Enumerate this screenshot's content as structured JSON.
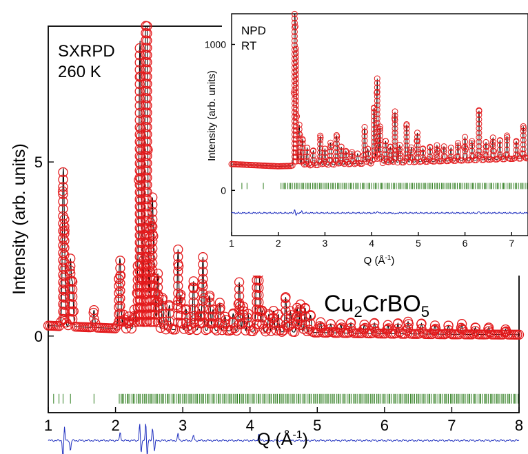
{
  "chart_data": [
    {
      "id": "main",
      "type": "scatter",
      "xlabel_text": "Q (Å",
      "xlabel_sup": "-1",
      "xlabel_close": ")",
      "ylabel": "Intensity (arb. units)",
      "xlim": [
        1,
        8
      ],
      "ylim": [
        -2.2,
        8.9
      ],
      "x_ticks": [
        1,
        2,
        3,
        4,
        5,
        6,
        7,
        8
      ],
      "x_tick_labels": [
        "1",
        "2",
        "3",
        "4",
        "5",
        "6",
        "7",
        "8"
      ],
      "y_ticks": [
        0,
        5
      ],
      "y_tick_labels": [
        "0",
        "5"
      ],
      "annotations": {
        "line1": "SXRPD",
        "line2": "260 K"
      },
      "compound": {
        "part1": "Cu",
        "sub1": "2",
        "part2": "CrBO",
        "sub2": "5"
      },
      "background": {
        "x": [
          1.0,
          2.0,
          3.0,
          4.0,
          5.0,
          6.0,
          7.0,
          8.0
        ],
        "y": [
          0.3,
          0.22,
          0.18,
          0.14,
          0.1,
          0.07,
          0.05,
          0.04
        ]
      },
      "peaks": [
        {
          "q": 1.22,
          "h": 3.9
        },
        {
          "q": 1.24,
          "h": 2.1
        },
        {
          "q": 1.33,
          "h": 1.9
        },
        {
          "q": 1.36,
          "h": 1.2
        },
        {
          "q": 1.68,
          "h": 0.5
        },
        {
          "q": 2.05,
          "h": 1.0
        },
        {
          "q": 2.07,
          "h": 1.7
        },
        {
          "q": 2.12,
          "h": 0.4
        },
        {
          "q": 2.2,
          "h": 0.35
        },
        {
          "q": 2.28,
          "h": 0.55
        },
        {
          "q": 2.33,
          "h": 1.5
        },
        {
          "q": 2.36,
          "h": 7.0
        },
        {
          "q": 2.38,
          "h": 4.0
        },
        {
          "q": 2.42,
          "h": 1.6
        },
        {
          "q": 2.45,
          "h": 8.5
        },
        {
          "q": 2.47,
          "h": 7.2
        },
        {
          "q": 2.52,
          "h": 2.9
        },
        {
          "q": 2.55,
          "h": 3.6
        },
        {
          "q": 2.58,
          "h": 1.3
        },
        {
          "q": 2.63,
          "h": 1.6
        },
        {
          "q": 2.7,
          "h": 0.9
        },
        {
          "q": 2.8,
          "h": 0.7
        },
        {
          "q": 2.93,
          "h": 2.3
        },
        {
          "q": 2.97,
          "h": 1.0
        },
        {
          "q": 3.05,
          "h": 0.6
        },
        {
          "q": 3.16,
          "h": 1.4
        },
        {
          "q": 3.25,
          "h": 0.6
        },
        {
          "q": 3.3,
          "h": 2.1
        },
        {
          "q": 3.4,
          "h": 1.0
        },
        {
          "q": 3.45,
          "h": 0.6
        },
        {
          "q": 3.55,
          "h": 0.8
        },
        {
          "q": 3.63,
          "h": 0.4
        },
        {
          "q": 3.75,
          "h": 0.5
        },
        {
          "q": 3.84,
          "h": 1.4
        },
        {
          "q": 3.9,
          "h": 0.7
        },
        {
          "q": 3.97,
          "h": 0.5
        },
        {
          "q": 4.1,
          "h": 2.0
        },
        {
          "q": 4.13,
          "h": 2.2
        },
        {
          "q": 4.18,
          "h": 0.6
        },
        {
          "q": 4.28,
          "h": 0.5
        },
        {
          "q": 4.35,
          "h": 0.6
        },
        {
          "q": 4.42,
          "h": 0.5
        },
        {
          "q": 4.53,
          "h": 1.0
        },
        {
          "q": 4.6,
          "h": 0.6
        },
        {
          "q": 4.7,
          "h": 0.7
        },
        {
          "q": 4.75,
          "h": 0.8
        },
        {
          "q": 4.82,
          "h": 0.7
        },
        {
          "q": 4.9,
          "h": 0.5
        },
        {
          "q": 5.05,
          "h": 0.3
        },
        {
          "q": 5.2,
          "h": 0.25
        },
        {
          "q": 5.35,
          "h": 0.25
        },
        {
          "q": 5.5,
          "h": 0.3
        },
        {
          "q": 5.7,
          "h": 0.25
        },
        {
          "q": 5.85,
          "h": 0.3
        },
        {
          "q": 6.05,
          "h": 0.25
        },
        {
          "q": 6.2,
          "h": 0.3
        },
        {
          "q": 6.35,
          "h": 0.35
        },
        {
          "q": 6.55,
          "h": 0.3
        },
        {
          "q": 6.75,
          "h": 0.25
        },
        {
          "q": 6.95,
          "h": 0.25
        },
        {
          "q": 7.15,
          "h": 0.3
        },
        {
          "q": 7.35,
          "h": 0.2
        },
        {
          "q": 7.55,
          "h": 0.2
        },
        {
          "q": 7.8,
          "h": 0.15
        }
      ],
      "bragg_ticks_y": -1.8,
      "bragg_positions": [
        1.08,
        1.16,
        1.22,
        1.33,
        1.68
      ],
      "bragg_dense_range": [
        2.05,
        8.0
      ],
      "bragg_dense_count": 260,
      "difference_offset": -3.0,
      "difference_spikes": [
        {
          "q": 1.22,
          "d": -0.6
        },
        {
          "q": 1.24,
          "d": 0.4
        },
        {
          "q": 1.33,
          "d": -0.3
        },
        {
          "q": 2.07,
          "d": 0.25
        },
        {
          "q": 2.36,
          "d": 0.5
        },
        {
          "q": 2.38,
          "d": -0.4
        },
        {
          "q": 2.45,
          "d": 0.55
        },
        {
          "q": 2.47,
          "d": -0.5
        },
        {
          "q": 2.55,
          "d": 0.35
        },
        {
          "q": 2.58,
          "d": -0.3
        },
        {
          "q": 2.93,
          "d": 0.2
        },
        {
          "q": 3.16,
          "d": 0.15
        },
        {
          "q": 4.13,
          "d": 0.2
        }
      ],
      "colors": {
        "observed": "#e31a1c",
        "calculated": "#000000",
        "bragg": "#2e7d1e",
        "difference": "#1f2fbf"
      }
    },
    {
      "id": "inset",
      "type": "scatter",
      "xlabel_text": "Q (Å",
      "xlabel_sup": "-1",
      "xlabel_close": ")",
      "ylabel": "Intensity (arb. units)",
      "xlim": [
        1,
        7.35
      ],
      "ylim": [
        -310,
        1210
      ],
      "x_ticks": [
        1,
        2,
        3,
        4,
        5,
        6,
        7
      ],
      "x_tick_labels": [
        "1",
        "2",
        "3",
        "4",
        "5",
        "6",
        "7"
      ],
      "y_ticks": [
        0,
        1000
      ],
      "y_tick_labels": [
        "0",
        "1000"
      ],
      "annotations": {
        "line1": "NPD",
        "line2": "RT"
      },
      "background": {
        "x": [
          1.0,
          2.0,
          3.0,
          4.0,
          5.0,
          6.0,
          7.35
        ],
        "y": [
          180,
          165,
          175,
          185,
          195,
          205,
          220
        ]
      },
      "peaks": [
        {
          "q": 2.35,
          "h": 1000
        },
        {
          "q": 2.38,
          "h": 700
        },
        {
          "q": 2.45,
          "h": 280
        },
        {
          "q": 2.52,
          "h": 180
        },
        {
          "q": 2.62,
          "h": 120
        },
        {
          "q": 2.75,
          "h": 100
        },
        {
          "q": 2.9,
          "h": 200
        },
        {
          "q": 3.0,
          "h": 110
        },
        {
          "q": 3.12,
          "h": 150
        },
        {
          "q": 3.25,
          "h": 200
        },
        {
          "q": 3.35,
          "h": 120
        },
        {
          "q": 3.45,
          "h": 90
        },
        {
          "q": 3.58,
          "h": 80
        },
        {
          "q": 3.7,
          "h": 70
        },
        {
          "q": 3.85,
          "h": 250
        },
        {
          "q": 3.92,
          "h": 100
        },
        {
          "q": 4.05,
          "h": 380
        },
        {
          "q": 4.12,
          "h": 580
        },
        {
          "q": 4.18,
          "h": 250
        },
        {
          "q": 4.3,
          "h": 150
        },
        {
          "q": 4.4,
          "h": 110
        },
        {
          "q": 4.5,
          "h": 350
        },
        {
          "q": 4.6,
          "h": 120
        },
        {
          "q": 4.75,
          "h": 260
        },
        {
          "q": 4.85,
          "h": 100
        },
        {
          "q": 4.98,
          "h": 200
        },
        {
          "q": 5.1,
          "h": 90
        },
        {
          "q": 5.25,
          "h": 100
        },
        {
          "q": 5.4,
          "h": 110
        },
        {
          "q": 5.55,
          "h": 100
        },
        {
          "q": 5.7,
          "h": 90
        },
        {
          "q": 5.85,
          "h": 120
        },
        {
          "q": 6.0,
          "h": 160
        },
        {
          "q": 6.15,
          "h": 130
        },
        {
          "q": 6.3,
          "h": 340
        },
        {
          "q": 6.45,
          "h": 120
        },
        {
          "q": 6.6,
          "h": 150
        },
        {
          "q": 6.75,
          "h": 130
        },
        {
          "q": 6.9,
          "h": 160
        },
        {
          "q": 7.1,
          "h": 120
        },
        {
          "q": 7.25,
          "h": 220
        }
      ],
      "bragg_ticks_y": 30,
      "bragg_positions": [
        1.22,
        1.33,
        1.68
      ],
      "bragg_dense_range": [
        2.05,
        7.35
      ],
      "bragg_dense_count": 150,
      "difference_offset": -155,
      "difference_spikes": [
        {
          "q": 2.35,
          "d": 25
        },
        {
          "q": 2.38,
          "d": -20
        },
        {
          "q": 2.5,
          "d": 12
        },
        {
          "q": 4.12,
          "d": 15
        },
        {
          "q": 4.5,
          "d": -12
        },
        {
          "q": 6.3,
          "d": 10
        }
      ],
      "colors": {
        "observed": "#e31a1c",
        "calculated": "#000000",
        "bragg": "#2e7d1e",
        "difference": "#1f2fbf"
      }
    }
  ]
}
